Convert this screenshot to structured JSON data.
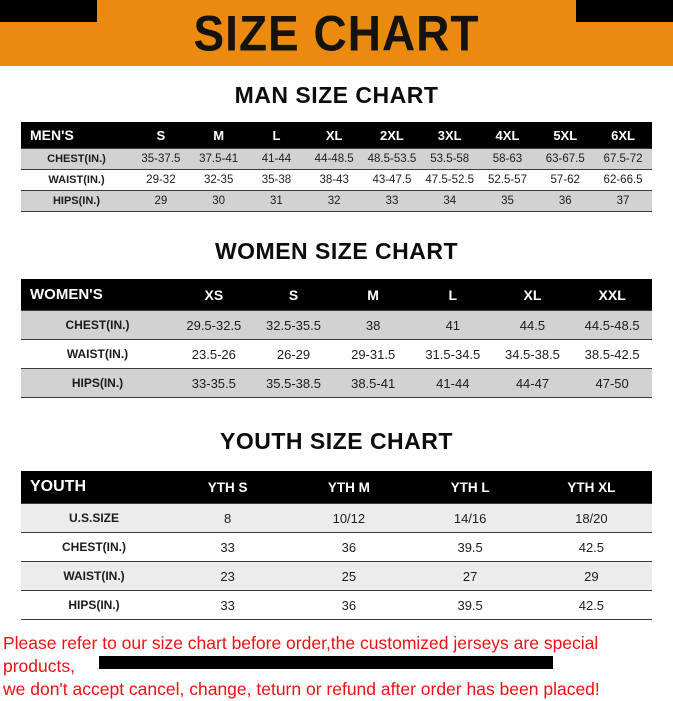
{
  "banner": {
    "title": "SIZE CHART"
  },
  "sections": [
    {
      "heading": "MAN SIZE CHART",
      "header_label": "MEN'S",
      "columns": [
        "S",
        "M",
        "L",
        "XL",
        "2XL",
        "3XL",
        "4XL",
        "5XL",
        "6XL"
      ],
      "rows": [
        {
          "label": "CHEST(IN.)",
          "shade": true,
          "values": [
            "35-37.5",
            "37.5-41",
            "41-44",
            "44-48.5",
            "48.5-53.5",
            "53.5-58",
            "58-63",
            "63-67.5",
            "67.5-72"
          ]
        },
        {
          "label": "WAIST(IN.)",
          "shade": false,
          "values": [
            "29-32",
            "32-35",
            "35-38",
            "38-43",
            "43-47.5",
            "47.5-52.5",
            "52.5-57",
            "57-62",
            "62-66.5"
          ]
        },
        {
          "label": "HIPS(IN.)",
          "shade": true,
          "values": [
            "29",
            "30",
            "31",
            "32",
            "33",
            "34",
            "35",
            "36",
            "37"
          ]
        }
      ]
    },
    {
      "heading": "WOMEN SIZE CHART",
      "header_label": "WOMEN'S",
      "columns": [
        "XS",
        "S",
        "M",
        "L",
        "XL",
        "XXL"
      ],
      "rows": [
        {
          "label": "CHEST(IN.)",
          "shade": true,
          "values": [
            "29.5-32.5",
            "32.5-35.5",
            "38",
            "41",
            "44.5",
            "44.5-48.5"
          ]
        },
        {
          "label": "WAIST(IN.)",
          "shade": false,
          "values": [
            "23.5-26",
            "26-29",
            "29-31.5",
            "31.5-34.5",
            "34.5-38.5",
            "38.5-42.5"
          ]
        },
        {
          "label": "HIPS(IN.)",
          "shade": true,
          "values": [
            "33-35.5",
            "35.5-38.5",
            "38.5-41",
            "41-44",
            "44-47",
            "47-50"
          ]
        }
      ]
    },
    {
      "heading": "YOUTH SIZE CHART",
      "header_label": "YOUTH",
      "columns": [
        "YTH S",
        "YTH M",
        "YTH L",
        "YTH XL"
      ],
      "rows": [
        {
          "label": "U.S.SIZE",
          "shade": true,
          "values": [
            "8",
            "10/12",
            "14/16",
            "18/20"
          ]
        },
        {
          "label": "CHEST(IN.)",
          "shade": false,
          "values": [
            "33",
            "36",
            "39.5",
            "42.5"
          ]
        },
        {
          "label": "WAIST(IN.)",
          "shade": true,
          "values": [
            "23",
            "25",
            "27",
            "29"
          ]
        },
        {
          "label": "HIPS(IN.)",
          "shade": false,
          "values": [
            "33",
            "36",
            "39.5",
            "42.5"
          ]
        }
      ]
    }
  ],
  "footer": {
    "line1": "Please refer to our size chart before order,the customized jerseys are special products,",
    "line2": "we don't accept cancel, change, teturn or refund after order has been placed!"
  },
  "colors": {
    "banner_bg": "#EA8A0F",
    "shade": "#d2d2d2",
    "footer_text": "#ee1111"
  }
}
